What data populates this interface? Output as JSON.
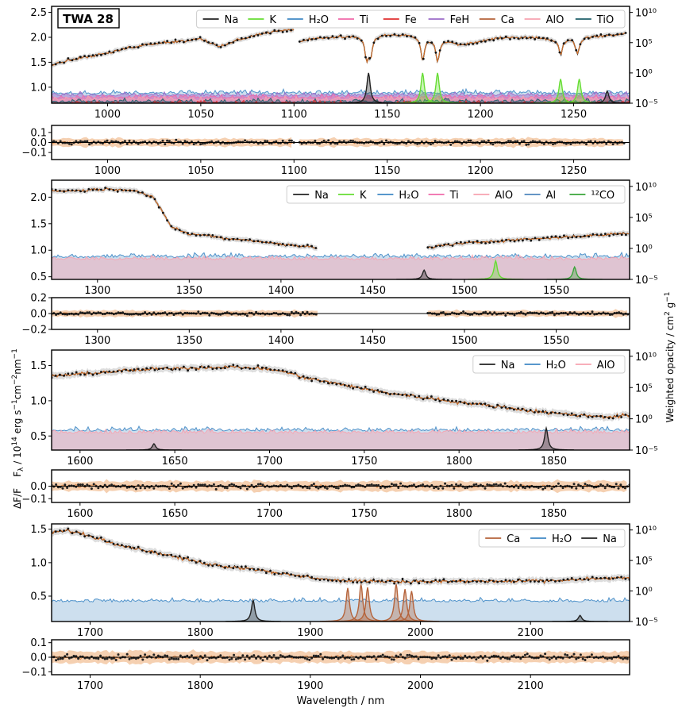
{
  "chart_data": {
    "type": "line",
    "title": "TWA 28",
    "xlabel": "Wavelength / nm",
    "ylabel_left": "F_λ / 10^14 erg s^-1 cm^-2 nm^-1",
    "ylabel_residual": "ΔF/F",
    "ylabel_right": "Weighted opacity / cm^2 g^-1",
    "colors": {
      "Na": "#222222",
      "K": "#66dd33",
      "H2O": "#3f88c5",
      "Ti": "#f06aaa",
      "Fe": "#e03030",
      "FeH": "#9c6bc8",
      "Ca": "#b5633a",
      "AlO": "#f7a3b0",
      "TiO": "#1f5f6a",
      "Al": "#4f86bd",
      "12CO": "#3aa53a",
      "data": "#111111",
      "model": "#d9732a",
      "band": "#f3c49e",
      "h2o_fill": "#c8dcec"
    },
    "panels": [
      {
        "xlim": [
          970,
          1280
        ],
        "ylim": [
          0.68,
          2.62
        ],
        "yticks": [
          "1.0",
          "1.5",
          "2.0",
          "2.5"
        ],
        "ytick_values": [
          1.0,
          1.5,
          2.0,
          2.5
        ],
        "xticks": [
          "1000",
          "1050",
          "1100",
          "1150",
          "1200",
          "1250"
        ],
        "xtick_values": [
          1000,
          1050,
          1100,
          1150,
          1200,
          1250
        ],
        "opacity_ticks": [
          "10¹⁰",
          "10⁵",
          "10⁰",
          "10⁻⁵"
        ],
        "legend": [
          {
            "label": "Na",
            "color": "Na"
          },
          {
            "label": "K",
            "color": "K"
          },
          {
            "label": "H₂O",
            "color": "H2O"
          },
          {
            "label": "Ti",
            "color": "Ti"
          },
          {
            "label": "Fe",
            "color": "Fe"
          },
          {
            "label": "FeH",
            "color": "FeH"
          },
          {
            "label": "Ca",
            "color": "Ca"
          },
          {
            "label": "AlO",
            "color": "AlO"
          },
          {
            "label": "TiO",
            "color": "TiO"
          }
        ],
        "spectrum_segments": [
          {
            "x": [
              970,
              980,
              990,
              1000,
              1010,
              1020,
              1030,
              1040,
              1050,
              1060,
              1070,
              1080,
              1090,
              1100
            ],
            "y": [
              1.45,
              1.55,
              1.62,
              1.68,
              1.78,
              1.85,
              1.9,
              1.92,
              1.98,
              1.8,
              1.95,
              2.05,
              2.12,
              2.15
            ]
          },
          {
            "x": [
              1103,
              1110,
              1120,
              1130,
              1140,
              1150,
              1160,
              1170,
              1180,
              1190,
              1200,
              1210,
              1220,
              1230,
              1240,
              1250,
              1260,
              1270,
              1278
            ],
            "y": [
              1.92,
              1.98,
              2.0,
              2.02,
              2.02,
              2.05,
              2.05,
              2.0,
              1.95,
              1.85,
              1.92,
              1.98,
              2.0,
              2.0,
              1.95,
              2.0,
              2.02,
              2.05,
              2.08
            ]
          }
        ],
        "absorption_lines": [
          {
            "x": 1139,
            "depth": 0.4
          },
          {
            "x": 1141,
            "depth": 0.35
          },
          {
            "x": 1169,
            "depth": 0.45
          },
          {
            "x": 1177,
            "depth": 0.45
          },
          {
            "x": 1243,
            "depth": 0.3
          },
          {
            "x": 1252,
            "depth": 0.35
          }
        ],
        "opacity_peaks": [
          {
            "species": "Na",
            "x": 1140,
            "log": 0.0
          },
          {
            "species": "K",
            "x": 1169,
            "log": 0.0
          },
          {
            "species": "K",
            "x": 1177,
            "log": 0.0
          },
          {
            "species": "K",
            "x": 1243,
            "log": -1.0
          },
          {
            "species": "K",
            "x": 1253,
            "log": -1.0
          },
          {
            "species": "Na",
            "x": 1268,
            "log": -3.0
          }
        ],
        "opacity_baseline": {
          "species": [
            "H2O",
            "FeH",
            "Ti",
            "AlO",
            "TiO",
            "Fe"
          ],
          "log": -3.5
        },
        "residual": {
          "ylim": [
            -0.17,
            0.17
          ],
          "yticks": [
            "0.1",
            "0.0",
            "−0.1"
          ],
          "ytick_values": [
            0.1,
            0.0,
            -0.1
          ],
          "xticks": [
            "1000",
            "1050",
            "1100",
            "1150",
            "1200",
            "1250"
          ],
          "xtick_values": [
            1000,
            1050,
            1100,
            1150,
            1200,
            1250
          ]
        }
      },
      {
        "xlim": [
          1275,
          1590
        ],
        "ylim": [
          0.45,
          2.32
        ],
        "yticks": [
          "0.5",
          "1.0",
          "1.5",
          "2.0"
        ],
        "ytick_values": [
          0.5,
          1.0,
          1.5,
          2.0
        ],
        "xticks": [
          "1300",
          "1350",
          "1400",
          "1450",
          "1500",
          "1550"
        ],
        "xtick_values": [
          1300,
          1350,
          1400,
          1450,
          1500,
          1550
        ],
        "opacity_ticks": [
          "10¹⁰",
          "10⁵",
          "10⁰",
          "10⁻⁵"
        ],
        "legend": [
          {
            "label": "Na",
            "color": "Na"
          },
          {
            "label": "K",
            "color": "K"
          },
          {
            "label": "H₂O",
            "color": "H2O"
          },
          {
            "label": "Ti",
            "color": "Ti"
          },
          {
            "label": "AlO",
            "color": "AlO"
          },
          {
            "label": "Al",
            "color": "Al"
          },
          {
            "label": "¹²CO",
            "color": "12CO"
          }
        ],
        "spectrum_segments": [
          {
            "x": [
              1275,
              1290,
              1300,
              1310,
              1320,
              1330,
              1335,
              1340,
              1350,
              1360,
              1370,
              1380,
              1390,
              1400,
              1410,
              1420
            ],
            "y": [
              2.12,
              2.12,
              2.15,
              2.15,
              2.13,
              2.0,
              1.75,
              1.45,
              1.3,
              1.28,
              1.22,
              1.2,
              1.15,
              1.12,
              1.08,
              1.05
            ]
          },
          {
            "x": [
              1480,
              1490,
              1500,
              1510,
              1520,
              1530,
              1540,
              1550,
              1560,
              1570,
              1580,
              1590
            ],
            "y": [
              1.05,
              1.1,
              1.13,
              1.16,
              1.18,
              1.2,
              1.22,
              1.24,
              1.26,
              1.28,
              1.3,
              1.32
            ]
          }
        ],
        "absorption_lines": [],
        "opacity_peaks": [
          {
            "species": "Na",
            "x": 1478,
            "log": -3.5
          },
          {
            "species": "K",
            "x": 1517,
            "log": -2.0
          },
          {
            "species": "12CO",
            "x": 1560,
            "log": -3.0
          }
        ],
        "opacity_baseline": {
          "species": [
            "H2O",
            "AlO"
          ],
          "log": -1.5
        },
        "residual": {
          "ylim": [
            -0.2,
            0.2
          ],
          "yticks": [
            "0.2",
            "0.0",
            "−0.2"
          ],
          "ytick_values": [
            0.2,
            0.0,
            -0.2
          ],
          "xticks": [
            "1300",
            "1350",
            "1400",
            "1450",
            "1500",
            "1550"
          ],
          "xtick_values": [
            1300,
            1350,
            1400,
            1450,
            1500,
            1550
          ]
        }
      },
      {
        "xlim": [
          1585,
          1890
        ],
        "ylim": [
          0.3,
          1.72
        ],
        "yticks": [
          "0.5",
          "1.0",
          "1.5"
        ],
        "ytick_values": [
          0.5,
          1.0,
          1.5
        ],
        "xticks": [
          "1600",
          "1650",
          "1700",
          "1750",
          "1800",
          "1850"
        ],
        "xtick_values": [
          1600,
          1650,
          1700,
          1750,
          1800,
          1850
        ],
        "opacity_ticks": [
          "10¹⁰",
          "10⁵",
          "10⁰",
          "10⁻⁵"
        ],
        "legend": [
          {
            "label": "Na",
            "color": "Na"
          },
          {
            "label": "H₂O",
            "color": "H2O"
          },
          {
            "label": "AlO",
            "color": "AlO"
          }
        ],
        "spectrum_segments": [
          {
            "x": [
              1585,
              1600,
              1620,
              1640,
              1660,
              1680,
              1700,
              1710,
              1720,
              1740,
              1760,
              1780,
              1800,
              1820,
              1840,
              1860,
              1880,
              1890
            ],
            "y": [
              1.35,
              1.38,
              1.42,
              1.45,
              1.47,
              1.48,
              1.45,
              1.4,
              1.32,
              1.22,
              1.12,
              1.05,
              0.98,
              0.92,
              0.85,
              0.8,
              0.77,
              0.8
            ]
          }
        ],
        "absorption_lines": [],
        "opacity_peaks": [
          {
            "species": "Na",
            "x": 1846,
            "log": -1.5
          },
          {
            "species": "Na",
            "x": 1639,
            "log": -4.0
          }
        ],
        "opacity_baseline": {
          "species": [
            "H2O",
            "AlO"
          ],
          "log": -2.0
        },
        "residual": {
          "ylim": [
            -0.13,
            0.13
          ],
          "yticks": [
            "0.0",
            "−0.1"
          ],
          "ytick_values": [
            0.0,
            -0.1
          ],
          "xticks": [
            "1600",
            "1650",
            "1700",
            "1750",
            "1800",
            "1850"
          ],
          "xtick_values": [
            1600,
            1650,
            1700,
            1750,
            1800,
            1850
          ]
        }
      },
      {
        "xlim": [
          1665,
          2190
        ],
        "ylim": [
          0.12,
          1.58
        ],
        "yticks": [
          "0.5",
          "1.0",
          "1.5"
        ],
        "ytick_values": [
          0.5,
          1.0,
          1.5
        ],
        "xticks": [
          "1700",
          "1800",
          "1900",
          "2000",
          "2100"
        ],
        "xtick_values": [
          1700,
          1800,
          1900,
          2000,
          2100
        ],
        "opacity_ticks": [
          "10¹⁰",
          "10⁵",
          "10⁰",
          "10⁻⁵"
        ],
        "legend": [
          {
            "label": "Ca",
            "color": "Ca"
          },
          {
            "label": "H₂O",
            "color": "H2O"
          },
          {
            "label": "Na",
            "color": "Na"
          }
        ],
        "spectrum_segments": [
          {
            "x": [
              1665,
              1680,
              1700,
              1720,
              1740,
              1760,
              1780,
              1800,
              1820,
              1840,
              1860,
              1880,
              1900,
              1920,
              1940,
              1960,
              1980,
              2000,
              2040,
              2080,
              2120,
              2160,
              2190
            ],
            "y": [
              1.45,
              1.48,
              1.4,
              1.3,
              1.22,
              1.15,
              1.08,
              1.0,
              0.95,
              0.92,
              0.88,
              0.82,
              0.78,
              0.74,
              0.72,
              0.73,
              0.72,
              0.72,
              0.72,
              0.72,
              0.73,
              0.76,
              0.77
            ]
          }
        ],
        "absorption_lines": [],
        "opacity_peaks": [
          {
            "species": "Na",
            "x": 1848,
            "log": -1.5
          },
          {
            "species": "Ca",
            "x": 1934,
            "log": 0.5
          },
          {
            "species": "Ca",
            "x": 1946,
            "log": 1.2
          },
          {
            "species": "Ca",
            "x": 1952,
            "log": 0.6
          },
          {
            "species": "Ca",
            "x": 1978,
            "log": 1.2
          },
          {
            "species": "Ca",
            "x": 1986,
            "log": 0.3
          },
          {
            "species": "Ca",
            "x": 1992,
            "log": 0.0
          },
          {
            "species": "Na",
            "x": 2145,
            "log": -4.0
          }
        ],
        "opacity_baseline": {
          "species": [
            "H2O"
          ],
          "log": -1.8
        },
        "residual": {
          "ylim": [
            -0.12,
            0.12
          ],
          "yticks": [
            "0.1",
            "0.0",
            "−0.1"
          ],
          "ytick_values": [
            0.1,
            0.0,
            -0.1
          ],
          "xticks": [
            "1700",
            "1800",
            "1900",
            "2000",
            "2100"
          ],
          "xtick_values": [
            1700,
            1800,
            1900,
            2000,
            2100
          ]
        }
      }
    ]
  }
}
